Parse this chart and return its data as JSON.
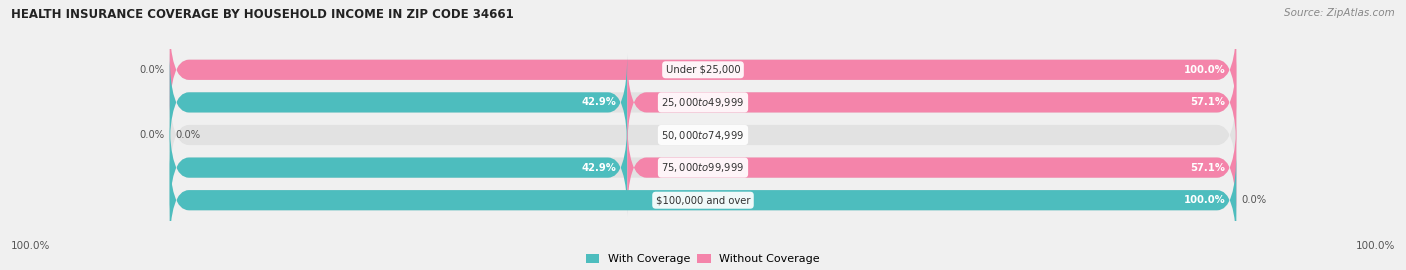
{
  "title": "HEALTH INSURANCE COVERAGE BY HOUSEHOLD INCOME IN ZIP CODE 34661",
  "source": "Source: ZipAtlas.com",
  "categories": [
    "Under $25,000",
    "$25,000 to $49,999",
    "$50,000 to $74,999",
    "$75,000 to $99,999",
    "$100,000 and over"
  ],
  "with_coverage": [
    0.0,
    42.9,
    0.0,
    42.9,
    100.0
  ],
  "without_coverage": [
    100.0,
    57.1,
    0.0,
    57.1,
    0.0
  ],
  "color_with": "#4dbdbe",
  "color_without": "#f484aa",
  "bg_color": "#f0f0f0",
  "bar_bg_color": "#e2e2e2",
  "figsize": [
    14.06,
    2.7
  ],
  "dpi": 100
}
